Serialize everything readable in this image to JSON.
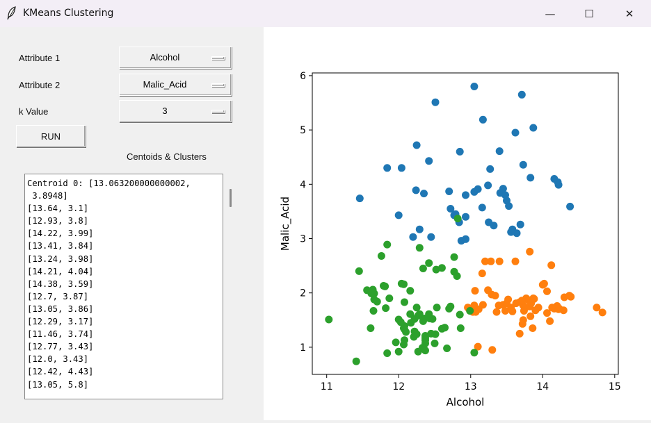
{
  "window": {
    "title": "KMeans Clustering",
    "icon": "feather-icon",
    "controls": {
      "minimize": "—",
      "maximize": "☐",
      "close": "✕"
    }
  },
  "controls": {
    "attr1_label": "Attribute 1",
    "attr1_value": "Alcohol",
    "attr2_label": "Attribute 2",
    "attr2_value": "Malic_Acid",
    "k_label": "k Value",
    "k_value": "3",
    "run_label": "RUN",
    "results_label": "Centoids & Clusters"
  },
  "results_lines": [
    "Centroid 0: [13.063200000000002,",
    " 3.8948]",
    "[13.64, 3.1]",
    "[12.93, 3.8]",
    "[14.22, 3.99]",
    "[13.41, 3.84]",
    "[13.24, 3.98]",
    "[14.21, 4.04]",
    "[14.38, 3.59]",
    "[12.7, 3.87]",
    "[13.05, 3.86]",
    "[12.29, 3.17]",
    "[11.46, 3.74]",
    "[12.77, 3.43]",
    "[12.0, 3.43]",
    "[12.42, 4.43]",
    "[13.05, 5.8]"
  ],
  "chart_data": {
    "type": "scatter",
    "xlabel": "Alcohol",
    "ylabel": "Malic_Acid",
    "xlim": [
      10.8,
      15.05
    ],
    "ylim": [
      0.5,
      6.05
    ],
    "xticks": [
      11,
      12,
      13,
      14,
      15
    ],
    "yticks": [
      1,
      2,
      3,
      4,
      5,
      6
    ],
    "grid": false,
    "series": [
      {
        "color": "#1f77b4",
        "points": [
          [
            13.64,
            3.1
          ],
          [
            12.93,
            3.8
          ],
          [
            14.22,
            3.99
          ],
          [
            13.41,
            3.84
          ],
          [
            13.24,
            3.98
          ],
          [
            14.21,
            4.04
          ],
          [
            14.38,
            3.59
          ],
          [
            12.7,
            3.87
          ],
          [
            13.05,
            3.86
          ],
          [
            12.29,
            3.17
          ],
          [
            11.46,
            3.74
          ],
          [
            12.77,
            3.43
          ],
          [
            12.0,
            3.43
          ],
          [
            12.42,
            4.43
          ],
          [
            13.05,
            5.8
          ],
          [
            12.51,
            5.51
          ],
          [
            13.71,
            5.65
          ],
          [
            13.87,
            5.04
          ],
          [
            13.62,
            4.95
          ],
          [
            12.85,
            4.6
          ],
          [
            13.4,
            4.61
          ],
          [
            13.73,
            4.36
          ],
          [
            13.83,
            4.12
          ],
          [
            14.16,
            4.1
          ],
          [
            13.17,
            5.19
          ],
          [
            11.84,
            4.3
          ],
          [
            12.04,
            4.3
          ],
          [
            12.25,
            4.72
          ],
          [
            13.27,
            4.28
          ],
          [
            12.24,
            3.89
          ],
          [
            12.35,
            3.83
          ],
          [
            13.1,
            3.91
          ],
          [
            13.45,
            3.92
          ],
          [
            13.48,
            3.8
          ],
          [
            13.5,
            3.7
          ],
          [
            13.53,
            3.6
          ],
          [
            13.16,
            3.57
          ],
          [
            12.72,
            3.55
          ],
          [
            12.79,
            3.45
          ],
          [
            12.84,
            3.3
          ],
          [
            12.93,
            3.4
          ],
          [
            13.25,
            3.3
          ],
          [
            13.32,
            3.24
          ],
          [
            13.58,
            3.17
          ],
          [
            13.56,
            3.12
          ],
          [
            13.69,
            3.26
          ],
          [
            12.2,
            3.03
          ],
          [
            12.45,
            3.03
          ],
          [
            12.87,
            2.96
          ],
          [
            12.93,
            2.99
          ]
        ]
      },
      {
        "color": "#ff7f0e",
        "points": [
          [
            13.16,
            2.36
          ],
          [
            13.2,
            2.58
          ],
          [
            13.28,
            2.58
          ],
          [
            13.4,
            2.58
          ],
          [
            13.62,
            2.58
          ],
          [
            13.82,
            2.76
          ],
          [
            14.12,
            2.51
          ],
          [
            14.02,
            2.17
          ],
          [
            14.0,
            2.15
          ],
          [
            13.06,
            2.04
          ],
          [
            14.06,
            2.03
          ],
          [
            13.24,
            2.05
          ],
          [
            13.34,
            1.95
          ],
          [
            14.3,
            1.92
          ],
          [
            14.37,
            1.95
          ],
          [
            14.39,
            1.93
          ],
          [
            13.52,
            1.88
          ],
          [
            13.8,
            1.87
          ],
          [
            13.87,
            1.9
          ],
          [
            14.2,
            1.76
          ],
          [
            13.73,
            1.77
          ],
          [
            13.58,
            1.66
          ],
          [
            13.76,
            1.73
          ],
          [
            13.05,
            1.73
          ],
          [
            13.07,
            1.65
          ],
          [
            13.11,
            1.7
          ],
          [
            13.17,
            1.78
          ],
          [
            13.39,
            1.77
          ],
          [
            13.45,
            1.78
          ],
          [
            13.5,
            1.81
          ],
          [
            13.56,
            1.73
          ],
          [
            13.63,
            1.81
          ],
          [
            13.68,
            1.83
          ],
          [
            13.74,
            1.67
          ],
          [
            13.77,
            1.9
          ],
          [
            13.82,
            1.75
          ],
          [
            13.83,
            1.57
          ],
          [
            13.84,
            1.81
          ],
          [
            13.86,
            1.35
          ],
          [
            13.88,
            1.89
          ],
          [
            13.9,
            1.68
          ],
          [
            13.94,
            1.73
          ],
          [
            14.06,
            1.63
          ],
          [
            14.1,
            1.48
          ],
          [
            14.13,
            1.73
          ],
          [
            14.16,
            1.71
          ],
          [
            14.22,
            1.7
          ],
          [
            14.23,
            1.71
          ],
          [
            14.29,
            1.68
          ],
          [
            14.75,
            1.73
          ],
          [
            14.83,
            1.64
          ],
          [
            13.71,
            1.86
          ],
          [
            13.73,
            1.5
          ],
          [
            13.48,
            1.67
          ],
          [
            13.72,
            1.43
          ],
          [
            13.29,
            1.97
          ],
          [
            13.03,
            1.65
          ],
          [
            12.99,
            1.67
          ],
          [
            13.68,
            1.25
          ],
          [
            13.36,
            1.65
          ],
          [
            13.05,
            1.77
          ],
          [
            13.56,
            1.71
          ],
          [
            13.3,
            0.95
          ],
          [
            13.1,
            1.01
          ],
          [
            12.96,
            1.73
          ]
        ]
      },
      {
        "color": "#2ca02c",
        "points": [
          [
            11.03,
            1.51
          ],
          [
            11.41,
            0.74
          ],
          [
            11.45,
            2.4
          ],
          [
            11.56,
            2.05
          ],
          [
            11.64,
            2.06
          ],
          [
            11.61,
            1.35
          ],
          [
            11.65,
            1.67
          ],
          [
            11.66,
            1.88
          ],
          [
            11.76,
            2.68
          ],
          [
            11.79,
            2.13
          ],
          [
            11.81,
            2.12
          ],
          [
            11.82,
            1.72
          ],
          [
            11.84,
            2.89
          ],
          [
            11.84,
            0.89
          ],
          [
            11.87,
            1.9
          ],
          [
            11.96,
            1.09
          ],
          [
            12.0,
            0.92
          ],
          [
            12.0,
            1.51
          ],
          [
            12.04,
            2.17
          ],
          [
            12.07,
            2.16
          ],
          [
            12.08,
            1.13
          ],
          [
            12.08,
            1.33
          ],
          [
            12.08,
            1.83
          ],
          [
            12.07,
            1.35
          ],
          [
            12.16,
            1.61
          ],
          [
            12.17,
            1.45
          ],
          [
            12.21,
            1.19
          ],
          [
            12.22,
            1.29
          ],
          [
            12.25,
            1.73
          ],
          [
            12.29,
            1.61
          ],
          [
            12.29,
            2.83
          ],
          [
            12.33,
            0.99
          ],
          [
            12.34,
            2.45
          ],
          [
            12.36,
            1.53
          ],
          [
            12.37,
            0.94
          ],
          [
            12.37,
            1.07
          ],
          [
            12.37,
            1.17
          ],
          [
            12.37,
            1.13
          ],
          [
            12.42,
            1.61
          ],
          [
            12.42,
            2.55
          ],
          [
            12.43,
            1.53
          ],
          [
            12.45,
            1.25
          ],
          [
            12.47,
            1.52
          ],
          [
            12.51,
            1.24
          ],
          [
            12.52,
            2.43
          ],
          [
            12.53,
            1.73
          ],
          [
            12.6,
            1.34
          ],
          [
            12.6,
            2.46
          ],
          [
            12.64,
            1.36
          ],
          [
            12.67,
            0.98
          ],
          [
            12.7,
            1.71
          ],
          [
            12.72,
            1.75
          ],
          [
            12.77,
            2.39
          ],
          [
            12.77,
            2.66
          ],
          [
            12.81,
            2.31
          ],
          [
            12.82,
            3.37
          ],
          [
            12.85,
            1.6
          ],
          [
            12.86,
            1.35
          ],
          [
            12.99,
            1.67
          ],
          [
            13.05,
            0.9
          ],
          [
            12.25,
            1.24
          ],
          [
            12.07,
            1.05
          ],
          [
            12.5,
            1.07
          ],
          [
            11.66,
            1.99
          ],
          [
            12.22,
            1.52
          ],
          [
            11.62,
            1.99
          ],
          [
            12.37,
            1.21
          ],
          [
            12.27,
            0.92
          ],
          [
            12.1,
            1.28
          ],
          [
            11.7,
            1.84
          ],
          [
            12.08,
            1.39
          ],
          [
            12.27,
            1.58
          ],
          [
            12.16,
            2.04
          ],
          [
            12.34,
            1.48
          ],
          [
            12.03,
            1.46
          ]
        ]
      }
    ]
  }
}
